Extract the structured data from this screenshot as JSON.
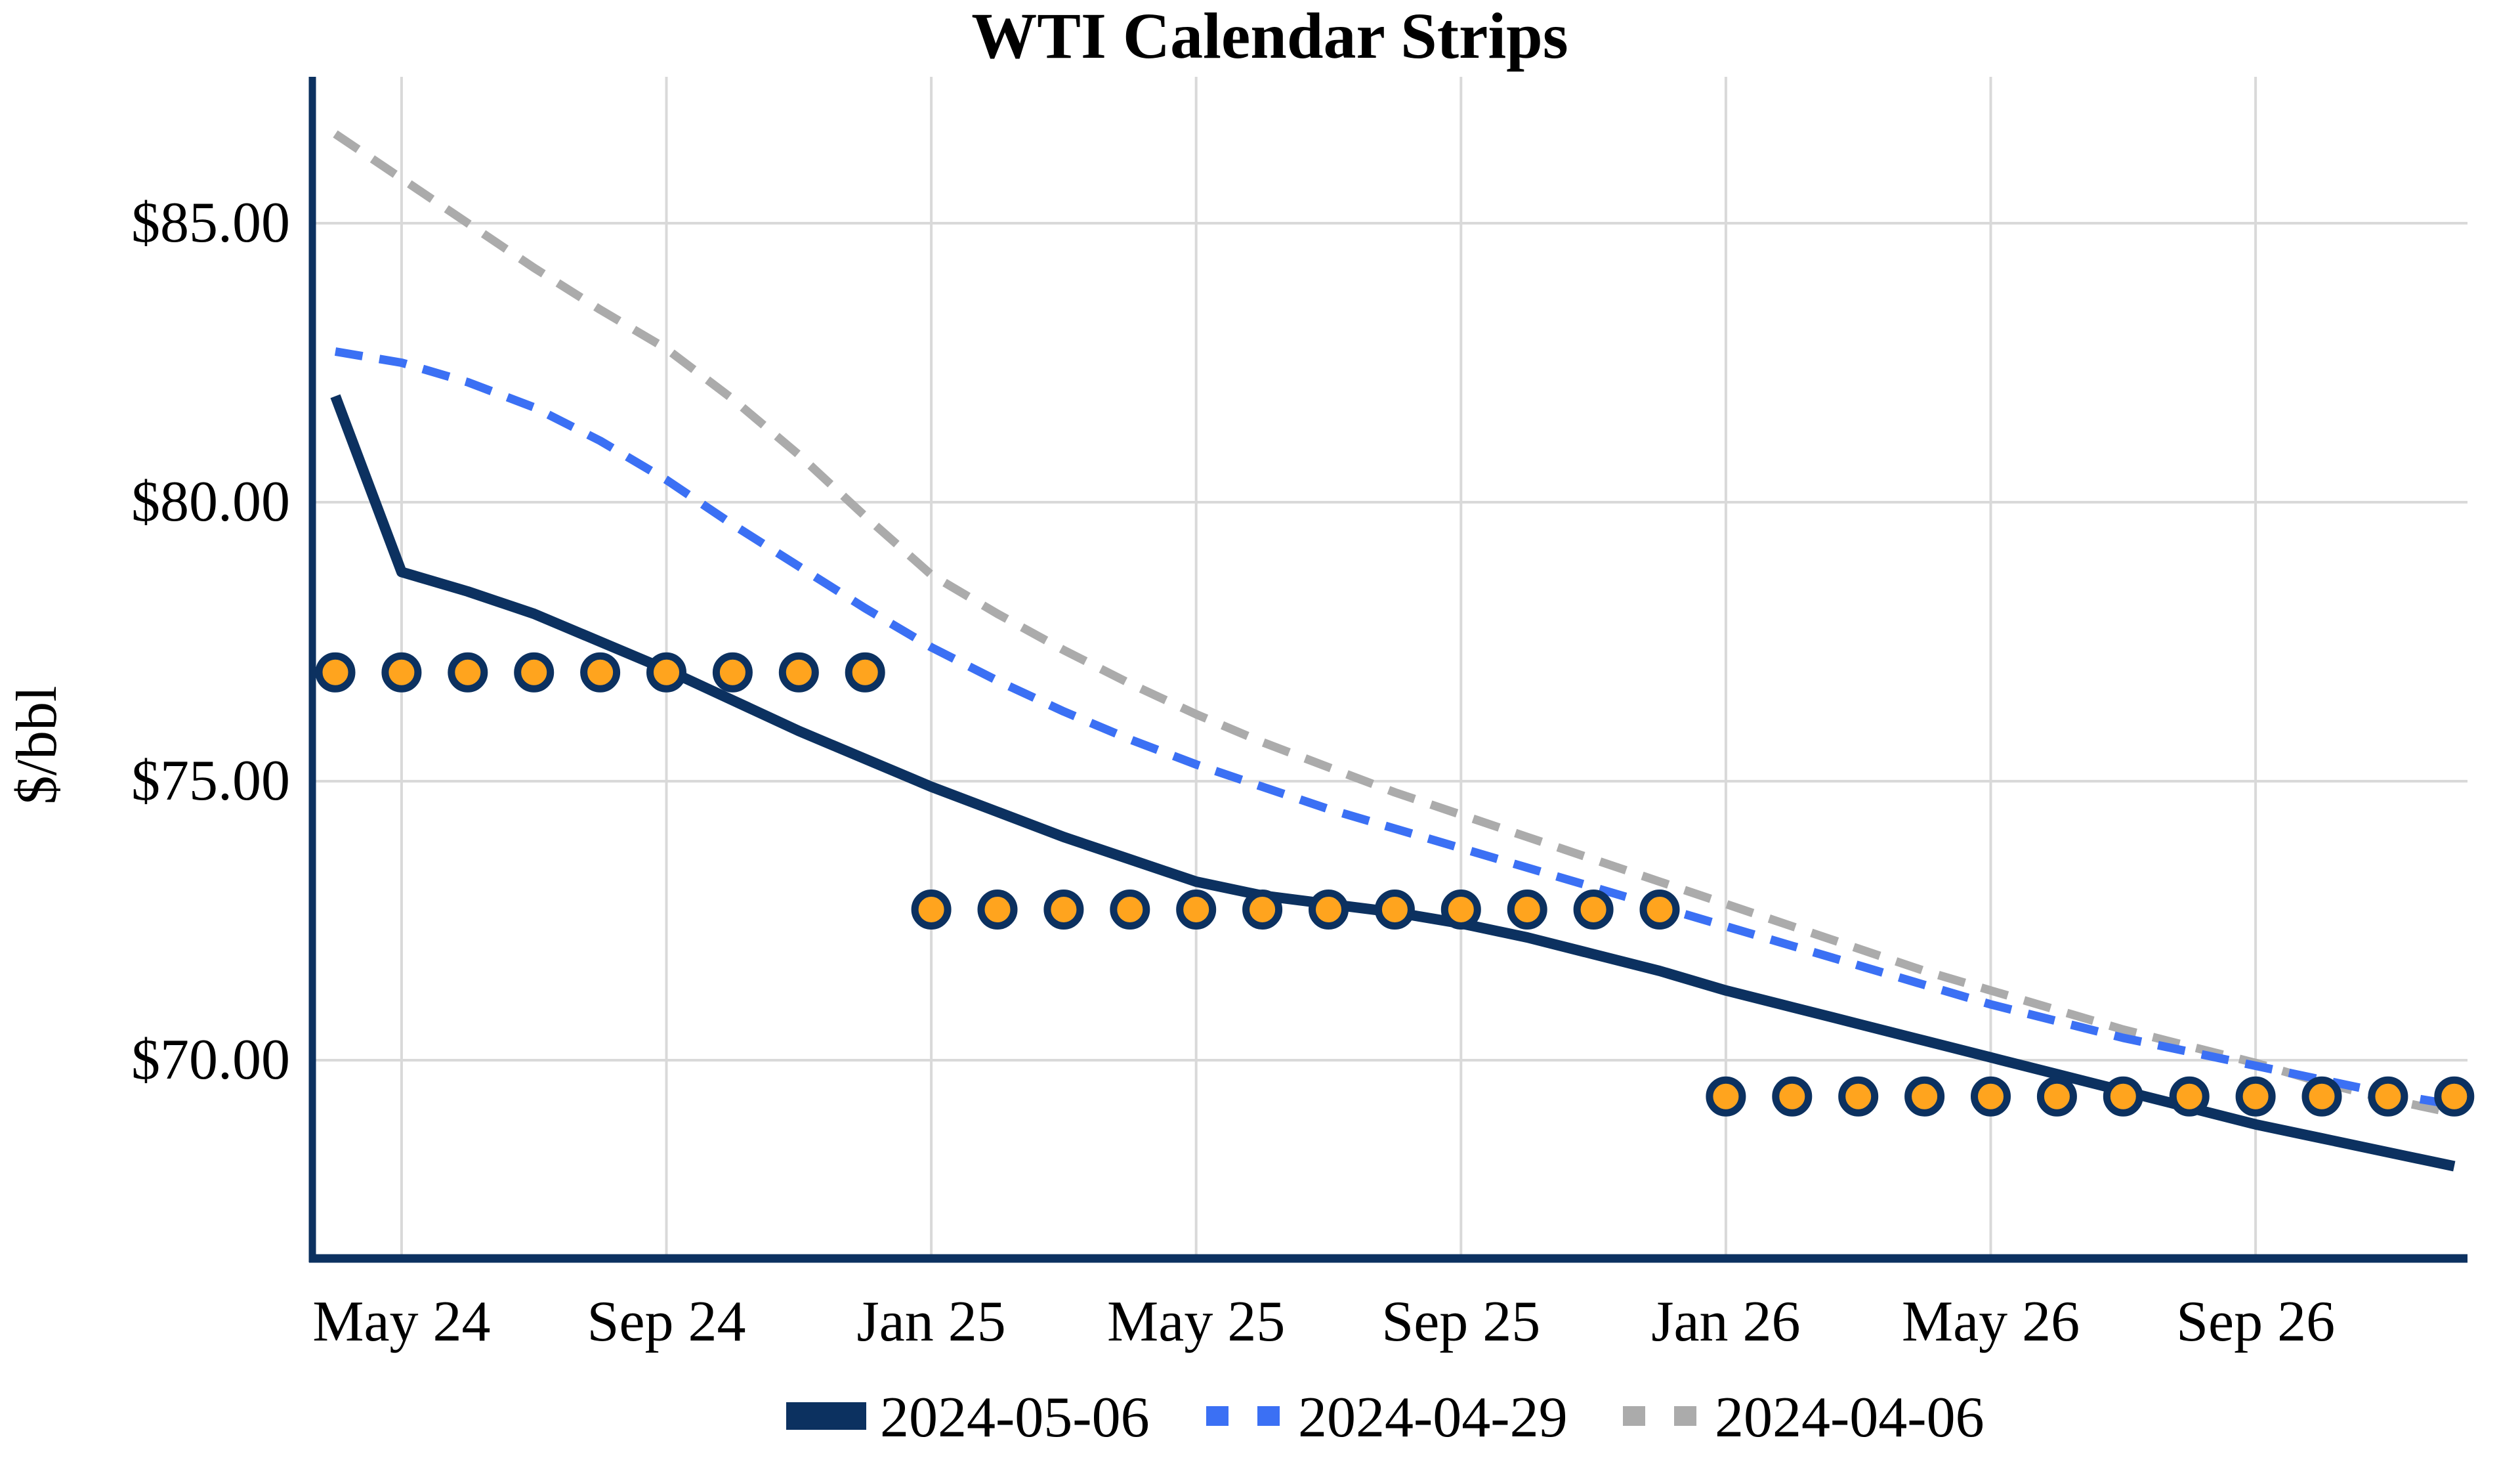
{
  "chart": {
    "title": "WTI Calendar Strips",
    "y_axis_label": "$/bbl",
    "colors": {
      "navy": "#0C3160",
      "blue": "#3B70F4",
      "gray": "#ABABAB",
      "orange": "#FFA41E",
      "grid": "#D9D9D9",
      "text": "#000000",
      "background": "#FFFFFF"
    }
  },
  "chart_data": {
    "type": "line",
    "title": "WTI Calendar Strips",
    "xlabel": "",
    "ylabel": "$/bbl",
    "grid": true,
    "legend_position": "bottom",
    "ylim": [
      66.45,
      87.6
    ],
    "categories": [
      "Apr 24",
      "May 24",
      "Jun 24",
      "Jul 24",
      "Aug 24",
      "Sep 24",
      "Oct 24",
      "Nov 24",
      "Dec 24",
      "Jan 25",
      "Feb 25",
      "Mar 25",
      "Apr 25",
      "May 25",
      "Jun 25",
      "Jul 25",
      "Aug 25",
      "Sep 25",
      "Oct 25",
      "Nov 25",
      "Dec 25",
      "Jan 26",
      "Feb 26",
      "Mar 26",
      "Apr 26",
      "May 26",
      "Jun 26",
      "Jul 26",
      "Aug 26",
      "Sep 26",
      "Oct 26",
      "Nov 26",
      "Dec 26"
    ],
    "x_ticks": [
      {
        "index": 1,
        "label": "May 24"
      },
      {
        "index": 5,
        "label": "Sep 24"
      },
      {
        "index": 9,
        "label": "Jan 25"
      },
      {
        "index": 13,
        "label": "May 25"
      },
      {
        "index": 17,
        "label": "Sep 25"
      },
      {
        "index": 21,
        "label": "Jan 26"
      },
      {
        "index": 25,
        "label": "May 26"
      },
      {
        "index": 29,
        "label": "Sep 26"
      }
    ],
    "y_ticks": [
      {
        "value": 85,
        "label": "$85.00"
      },
      {
        "value": 80,
        "label": "$80.00"
      },
      {
        "value": 75,
        "label": "$75.00"
      },
      {
        "value": 70,
        "label": "$70.00"
      }
    ],
    "series": [
      {
        "name": "2024-05-06",
        "style": "solid",
        "color": "#0C3160",
        "values": [
          81.9,
          78.75,
          78.4,
          78.0,
          77.5,
          77.0,
          76.45,
          75.9,
          75.4,
          74.9,
          74.45,
          74.0,
          73.6,
          73.2,
          72.95,
          72.8,
          72.65,
          72.45,
          72.2,
          71.9,
          71.6,
          71.25,
          70.95,
          70.65,
          70.35,
          70.05,
          69.75,
          69.45,
          69.15,
          68.85,
          68.6,
          68.35,
          68.1
        ]
      },
      {
        "name": "2024-04-29",
        "style": "dashed",
        "color": "#3B70F4",
        "values": [
          82.7,
          82.5,
          82.15,
          81.7,
          81.1,
          80.4,
          79.6,
          78.85,
          78.1,
          77.4,
          76.8,
          76.25,
          75.75,
          75.3,
          74.9,
          74.5,
          74.15,
          73.8,
          73.45,
          73.1,
          72.75,
          72.4,
          72.05,
          71.7,
          71.35,
          71.0,
          70.7,
          70.4,
          70.15,
          69.9,
          69.65,
          69.4,
          69.2
        ]
      },
      {
        "name": "2024-04-06",
        "style": "dashed",
        "color": "#ABABAB",
        "values": [
          86.6,
          85.8,
          85.0,
          84.2,
          83.45,
          82.75,
          81.85,
          80.85,
          79.75,
          78.7,
          78.0,
          77.35,
          76.75,
          76.2,
          75.7,
          75.25,
          74.8,
          74.4,
          74.0,
          73.6,
          73.2,
          72.8,
          72.4,
          72.0,
          71.6,
          71.25,
          70.9,
          70.55,
          70.25,
          69.95,
          69.6,
          69.3,
          69.05
        ]
      }
    ],
    "calendar_strip_dots": {
      "description": "yearly strip averages shown as orange markers",
      "marker": "circle-orange-navy-ring",
      "values": [
        76.95,
        76.95,
        76.95,
        76.95,
        76.95,
        76.95,
        76.95,
        76.95,
        76.95,
        72.7,
        72.7,
        72.7,
        72.7,
        72.7,
        72.7,
        72.7,
        72.7,
        72.7,
        72.7,
        72.7,
        72.7,
        69.35,
        69.35,
        69.35,
        69.35,
        69.35,
        69.35,
        69.35,
        69.35,
        69.35,
        69.35,
        69.35,
        69.35
      ],
      "strips": [
        {
          "year": "2024",
          "months": "Apr 24 - Dec 24",
          "value": 76.95,
          "count": 9
        },
        {
          "year": "2025",
          "months": "Jan 25 - Dec 25",
          "value": 72.7,
          "count": 12
        },
        {
          "year": "2026",
          "months": "Jan 26 - Dec 26",
          "value": 69.35,
          "count": 12
        }
      ]
    }
  }
}
